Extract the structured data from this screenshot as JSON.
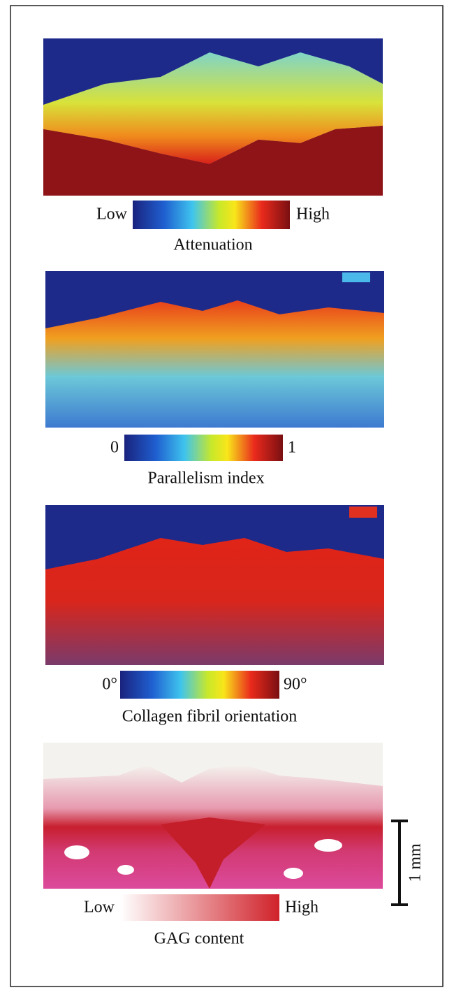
{
  "panels": [
    {
      "colorbar": {
        "low": "Low",
        "high": "High"
      },
      "label": "Attenuation"
    },
    {
      "colorbar": {
        "low": "0",
        "high": "1"
      },
      "label": "Parallelism index"
    },
    {
      "colorbar": {
        "low": "0°",
        "high": "90°"
      },
      "label": "Collagen fibril orientation"
    },
    {
      "colorbar": {
        "low": "Low",
        "high": "High"
      },
      "label": "GAG content"
    }
  ],
  "scale_bar": {
    "label": "1 mm"
  }
}
